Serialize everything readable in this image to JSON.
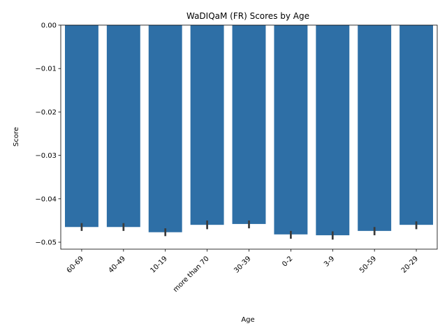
{
  "chart_data": {
    "type": "bar",
    "title": "WaDIQaM (FR) Scores by Age",
    "xlabel": "Age",
    "ylabel": "Score",
    "categories": [
      "60-69",
      "40-49",
      "10-19",
      "more than 70",
      "30-39",
      "0-2",
      "3-9",
      "50-59",
      "20-29"
    ],
    "values": [
      -0.0465,
      -0.0465,
      -0.0477,
      -0.046,
      -0.0458,
      -0.0482,
      -0.0484,
      -0.0474,
      -0.046
    ],
    "error_bars": [
      [
        -0.0474,
        -0.0456
      ],
      [
        -0.0474,
        -0.0456
      ],
      [
        -0.0486,
        -0.0468
      ],
      [
        -0.047,
        -0.045
      ],
      [
        -0.0468,
        -0.045
      ],
      [
        -0.0492,
        -0.0474
      ],
      [
        -0.0494,
        -0.0475
      ],
      [
        -0.0484,
        -0.0465
      ],
      [
        -0.047,
        -0.0452
      ]
    ],
    "yticks": [
      0.0,
      -0.01,
      -0.02,
      -0.03,
      -0.04,
      -0.05
    ],
    "ytick_labels": [
      "0.00",
      "−0.01",
      "−0.02",
      "−0.03",
      "−0.04",
      "−0.05"
    ],
    "ylim": [
      -0.0516,
      0.0
    ],
    "grid": false,
    "bar_color": "#2e6fa6",
    "errbar_color": "#3b3b3b"
  }
}
